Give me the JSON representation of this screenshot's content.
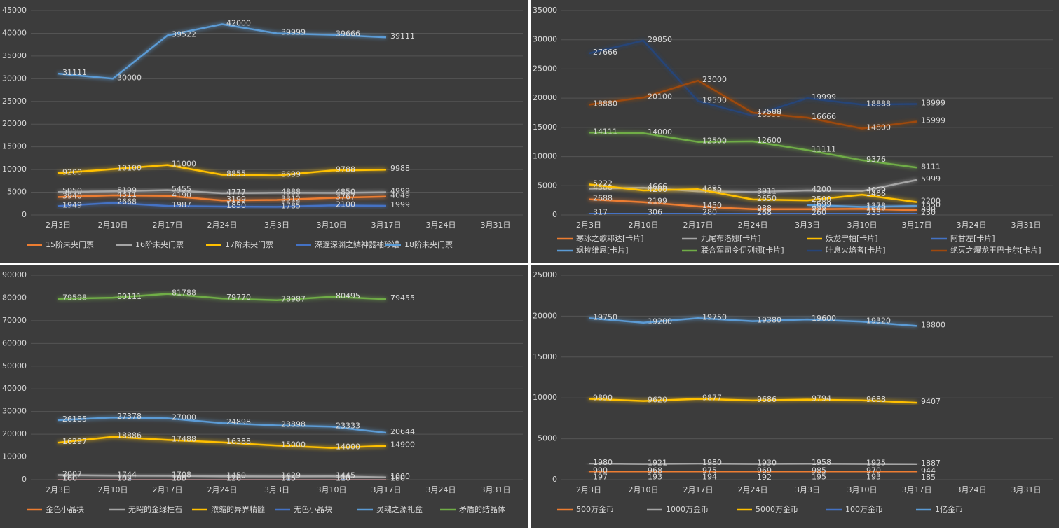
{
  "chart_data": [
    {
      "type": "line",
      "categories": [
        "2月3日",
        "2月10日",
        "2月17日",
        "2月24日",
        "3月3日",
        "3月10日",
        "3月17日",
        "3月24日",
        "3月31日"
      ],
      "ylim": [
        0,
        45000
      ],
      "yticks": [
        0,
        5000,
        10000,
        15000,
        20000,
        25000,
        30000,
        35000,
        40000,
        45000
      ],
      "grid": true,
      "legend": "bottom",
      "series": [
        {
          "name": "15阶未央门票",
          "color": "#ed7d31",
          "values": [
            3940,
            4311,
            4190,
            3199,
            3312,
            3767,
            4049,
            null,
            null
          ]
        },
        {
          "name": "16阶未央门票",
          "color": "#a5a5a5",
          "values": [
            5050,
            5199,
            5455,
            4777,
            4888,
            4850,
            4999,
            null,
            null
          ]
        },
        {
          "name": "17阶未央门票",
          "color": "#ffc000",
          "values": [
            9200,
            10100,
            11000,
            8855,
            8699,
            9788,
            9988,
            null,
            null
          ]
        },
        {
          "name": "深邃深渊之鳞神器袖珍罐",
          "color": "#4472c4",
          "values": [
            1949,
            2668,
            1987,
            1850,
            1785,
            2100,
            1999,
            null,
            null
          ]
        },
        {
          "name": "18阶未央门票",
          "color": "#5b9bd5",
          "values": [
            31111,
            30000,
            39522,
            42000,
            39999,
            39666,
            39111,
            null,
            null
          ]
        }
      ]
    },
    {
      "type": "line",
      "categories": [
        "2月3日",
        "2月10日",
        "2月17日",
        "2月24日",
        "3月3日",
        "3月10日",
        "3月17日",
        "3月24日",
        "3月31日"
      ],
      "ylim": [
        0,
        35000
      ],
      "yticks": [
        0,
        5000,
        10000,
        15000,
        20000,
        25000,
        30000,
        35000
      ],
      "grid": true,
      "legend": "bottom",
      "series": [
        {
          "name": "寒冰之歌耶达[卡片]",
          "color": "#ed7d31",
          "values": [
            2688,
            2199,
            1450,
            988,
            999,
            1040,
            800,
            null,
            null
          ]
        },
        {
          "name": "九尾布洛娜[卡片]",
          "color": "#a5a5a5",
          "values": [
            4500,
            4666,
            4050,
            3911,
            4200,
            4099,
            5999,
            null,
            null
          ]
        },
        {
          "name": "妖龙宁帕[卡片]",
          "color": "#ffc000",
          "values": [
            5222,
            4200,
            4395,
            2650,
            2500,
            3466,
            2200,
            null,
            null
          ]
        },
        {
          "name": "阿甘左[卡片]",
          "color": "#4472c4",
          "values": [
            317,
            306,
            280,
            268,
            260,
            235,
            230,
            null,
            null
          ]
        },
        {
          "name": "飒拉维恩[卡片]",
          "color": "#5b9bd5",
          "values": [
            null,
            null,
            null,
            null,
            1699,
            1378,
            1550,
            null,
            null
          ]
        },
        {
          "name": "联合军司令伊列娜[卡片]",
          "color": "#70ad47",
          "values": [
            14111,
            14000,
            12500,
            12600,
            11111,
            9376,
            8111,
            null,
            null
          ]
        },
        {
          "name": "吐息火焰者[卡片]",
          "color": "#264478",
          "values": [
            27666,
            29850,
            19500,
            16999,
            19999,
            18888,
            18999,
            null,
            null
          ]
        },
        {
          "name": "绝灭之爆龙王巴卡尔[卡片]",
          "color": "#9e480e",
          "values": [
            18880,
            20100,
            23000,
            17500,
            16666,
            14800,
            15999,
            null,
            null
          ]
        }
      ]
    },
    {
      "type": "line",
      "categories": [
        "2月3日",
        "2月10日",
        "2月17日",
        "2月24日",
        "3月3日",
        "3月10日",
        "3月17日",
        "3月24日",
        "3月31日"
      ],
      "ylim": [
        0,
        90000
      ],
      "yticks": [
        0,
        10000,
        20000,
        30000,
        40000,
        50000,
        60000,
        70000,
        80000,
        90000
      ],
      "grid": true,
      "legend": "bottom",
      "series": [
        {
          "name": "金色小晶块",
          "color": "#ed7d31",
          "values": [
            160,
            108,
            155,
            156,
            140,
            146,
            150,
            null,
            null
          ]
        },
        {
          "name": "无暇的金绿柱石",
          "color": "#a5a5a5",
          "values": [
            2007,
            1744,
            1708,
            1450,
            1429,
            1445,
            1000,
            null,
            null
          ]
        },
        {
          "name": "浓缩的异界精髓",
          "color": "#ffc000",
          "values": [
            16297,
            18886,
            17488,
            16388,
            15000,
            14000,
            14900,
            null,
            null
          ]
        },
        {
          "name": "无色小晶块",
          "color": "#4472c4",
          "values": [
            100,
            102,
            100,
            120,
            115,
            110,
            100,
            null,
            null
          ]
        },
        {
          "name": "灵魂之源礼盒",
          "color": "#5b9bd5",
          "values": [
            26185,
            27378,
            27000,
            24898,
            23898,
            23333,
            20644,
            null,
            null
          ]
        },
        {
          "name": "矛盾的结晶体",
          "color": "#70ad47",
          "values": [
            79598,
            80111,
            81788,
            79770,
            78987,
            80495,
            79455,
            null,
            null
          ]
        }
      ]
    },
    {
      "type": "line",
      "categories": [
        "2月3日",
        "2月10日",
        "2月17日",
        "2月24日",
        "3月3日",
        "3月10日",
        "3月17日",
        "3月24日",
        "3月31日"
      ],
      "ylim": [
        0,
        25000
      ],
      "yticks": [
        0,
        5000,
        10000,
        15000,
        20000,
        25000
      ],
      "grid": true,
      "legend": "bottom",
      "series": [
        {
          "name": "500万金币",
          "color": "#ed7d31",
          "values": [
            990,
            968,
            975,
            969,
            985,
            970,
            944,
            null,
            null
          ]
        },
        {
          "name": "1000万金币",
          "color": "#a5a5a5",
          "values": [
            1980,
            1921,
            1980,
            1930,
            1958,
            1925,
            1887,
            null,
            null
          ]
        },
        {
          "name": "5000万金币",
          "color": "#ffc000",
          "values": [
            9890,
            9620,
            9877,
            9686,
            9794,
            9688,
            9407,
            null,
            null
          ]
        },
        {
          "name": "100万金币",
          "color": "#4472c4",
          "values": [
            197,
            193,
            194,
            192,
            195,
            193,
            185,
            null,
            null
          ]
        },
        {
          "name": "1亿金币",
          "color": "#5b9bd5",
          "values": [
            19750,
            19200,
            19750,
            19380,
            19600,
            19320,
            18800,
            null,
            null
          ]
        }
      ]
    }
  ]
}
